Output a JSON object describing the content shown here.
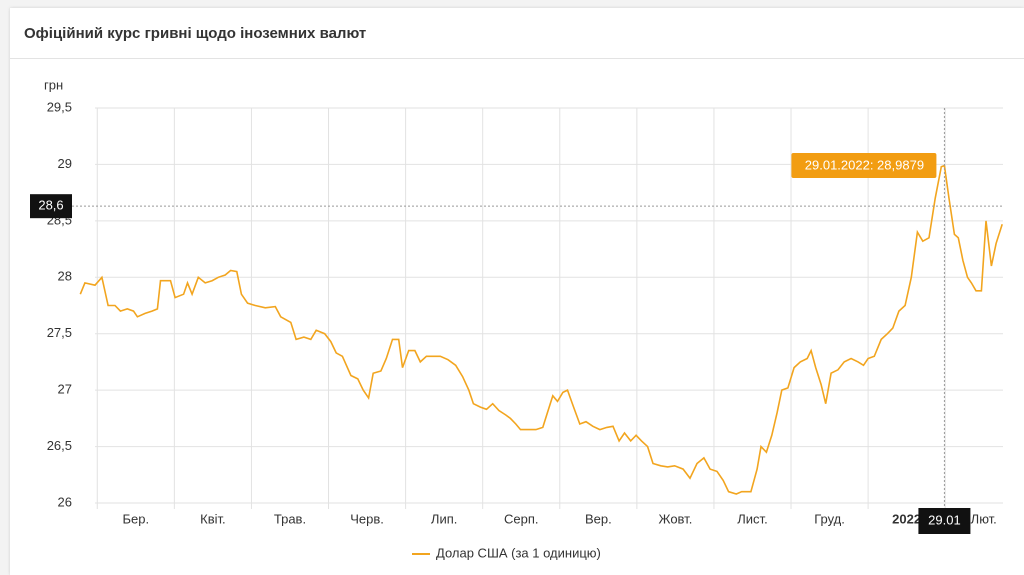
{
  "title": "Офіційний курс гривні щодо іноземних валют",
  "chart_data": {
    "type": "line",
    "y_label": "грн",
    "color": "#f2a51f",
    "grid": true,
    "xlim": [
      -0.25,
      11.75
    ],
    "ylim": [
      26,
      29.5
    ],
    "yticks": [
      {
        "value": 29.5,
        "label": "29,5"
      },
      29,
      {
        "value": 28.5,
        "label": "28,5"
      },
      28,
      {
        "value": 27.5,
        "label": "27,5"
      },
      27,
      {
        "value": 26.5,
        "label": "26,5"
      },
      26
    ],
    "xticks": [
      {
        "value": 0.5,
        "label": "Бер."
      },
      {
        "value": 1.5,
        "label": "Квіт."
      },
      {
        "value": 2.5,
        "label": "Трав."
      },
      {
        "value": 3.5,
        "label": "Черв."
      },
      {
        "value": 4.5,
        "label": "Лип."
      },
      {
        "value": 5.5,
        "label": "Серп."
      },
      {
        "value": 6.5,
        "label": "Вер."
      },
      {
        "value": 7.5,
        "label": "Жовт."
      },
      {
        "value": 8.5,
        "label": "Лист."
      },
      {
        "value": 9.5,
        "label": "Груд."
      },
      {
        "value": 10.5,
        "label": "2022"
      },
      {
        "value": 11.5,
        "label": "Лют."
      }
    ],
    "xgrid": [
      0,
      1,
      2,
      3,
      4,
      5,
      6,
      7,
      8,
      9,
      10,
      11
    ],
    "x": [
      -0.22,
      -0.16,
      -0.03,
      0.06,
      0.14,
      0.23,
      0.3,
      0.39,
      0.47,
      0.52,
      0.62,
      0.71,
      0.78,
      0.82,
      0.95,
      1.01,
      1.12,
      1.17,
      1.23,
      1.31,
      1.4,
      1.49,
      1.57,
      1.66,
      1.73,
      1.81,
      1.87,
      1.95,
      2.05,
      2.18,
      2.31,
      2.38,
      2.51,
      2.58,
      2.68,
      2.77,
      2.84,
      2.95,
      3.03,
      3.1,
      3.18,
      3.29,
      3.38,
      3.45,
      3.52,
      3.58,
      3.68,
      3.75,
      3.83,
      3.91,
      3.96,
      4.04,
      4.12,
      4.19,
      4.27,
      4.35,
      4.45,
      4.55,
      4.65,
      4.74,
      4.82,
      4.88,
      4.97,
      5.05,
      5.13,
      5.21,
      5.3,
      5.36,
      5.43,
      5.49,
      5.6,
      5.69,
      5.78,
      5.84,
      5.91,
      5.97,
      6.04,
      6.1,
      6.18,
      6.26,
      6.34,
      6.43,
      6.52,
      6.61,
      6.69,
      6.77,
      6.84,
      6.92,
      6.99,
      7.06,
      7.14,
      7.21,
      7.31,
      7.4,
      7.49,
      7.6,
      7.69,
      7.78,
      7.87,
      7.95,
      8.04,
      8.12,
      8.19,
      8.29,
      8.36,
      8.48,
      8.56,
      8.61,
      8.68,
      8.75,
      8.82,
      8.88,
      8.96,
      9.04,
      9.12,
      9.21,
      9.26,
      9.32,
      9.39,
      9.45,
      9.52,
      9.61,
      9.69,
      9.78,
      9.87,
      9.94,
      10.0,
      10.08,
      10.17,
      10.25,
      10.32,
      10.4,
      10.48,
      10.56,
      10.64,
      10.71,
      10.79,
      10.87,
      10.95,
      10.99,
      11.05,
      11.12,
      11.17,
      11.23,
      11.29,
      11.34,
      11.4,
      11.47,
      11.53,
      11.6,
      11.66,
      11.74
    ],
    "series": [
      {
        "name": "Долар США (за 1 одиницю)",
        "color": "#f2a51f",
        "values": [
          27.85,
          27.95,
          27.93,
          28.0,
          27.75,
          27.75,
          27.7,
          27.72,
          27.7,
          27.65,
          27.68,
          27.7,
          27.72,
          27.97,
          27.97,
          27.82,
          27.85,
          27.95,
          27.85,
          28.0,
          27.95,
          27.97,
          28.0,
          28.02,
          28.06,
          28.05,
          27.85,
          27.77,
          27.75,
          27.73,
          27.74,
          27.65,
          27.6,
          27.45,
          27.47,
          27.45,
          27.53,
          27.5,
          27.43,
          27.33,
          27.3,
          27.13,
          27.1,
          27.0,
          26.93,
          27.15,
          27.17,
          27.28,
          27.45,
          27.45,
          27.2,
          27.35,
          27.35,
          27.25,
          27.3,
          27.3,
          27.3,
          27.27,
          27.22,
          27.12,
          27.0,
          26.88,
          26.85,
          26.83,
          26.88,
          26.82,
          26.78,
          26.75,
          26.7,
          26.65,
          26.65,
          26.65,
          26.67,
          26.8,
          26.95,
          26.9,
          26.98,
          27.0,
          26.85,
          26.7,
          26.72,
          26.68,
          26.65,
          26.67,
          26.68,
          26.55,
          26.62,
          26.55,
          26.6,
          26.55,
          26.5,
          26.35,
          26.33,
          26.32,
          26.33,
          26.3,
          26.22,
          26.35,
          26.4,
          26.3,
          26.28,
          26.2,
          26.1,
          26.08,
          26.1,
          26.1,
          26.3,
          26.5,
          26.45,
          26.6,
          26.8,
          27.0,
          27.02,
          27.2,
          27.25,
          27.28,
          27.35,
          27.2,
          27.05,
          26.88,
          27.15,
          27.18,
          27.25,
          27.28,
          27.25,
          27.22,
          27.28,
          27.3,
          27.45,
          27.5,
          27.55,
          27.7,
          27.75,
          28.0,
          28.4,
          28.32,
          28.35,
          28.7,
          28.98,
          28.99,
          28.7,
          28.38,
          28.35,
          28.15,
          28.0,
          27.95,
          27.88,
          27.88,
          28.5,
          28.1,
          28.3,
          28.47
        ]
      }
    ],
    "crosshair": {
      "x": 10.99,
      "y": 28.63,
      "x_label": "29.01",
      "y_label": "28,6",
      "tooltip": "29.01.2022: 28,9879"
    }
  }
}
